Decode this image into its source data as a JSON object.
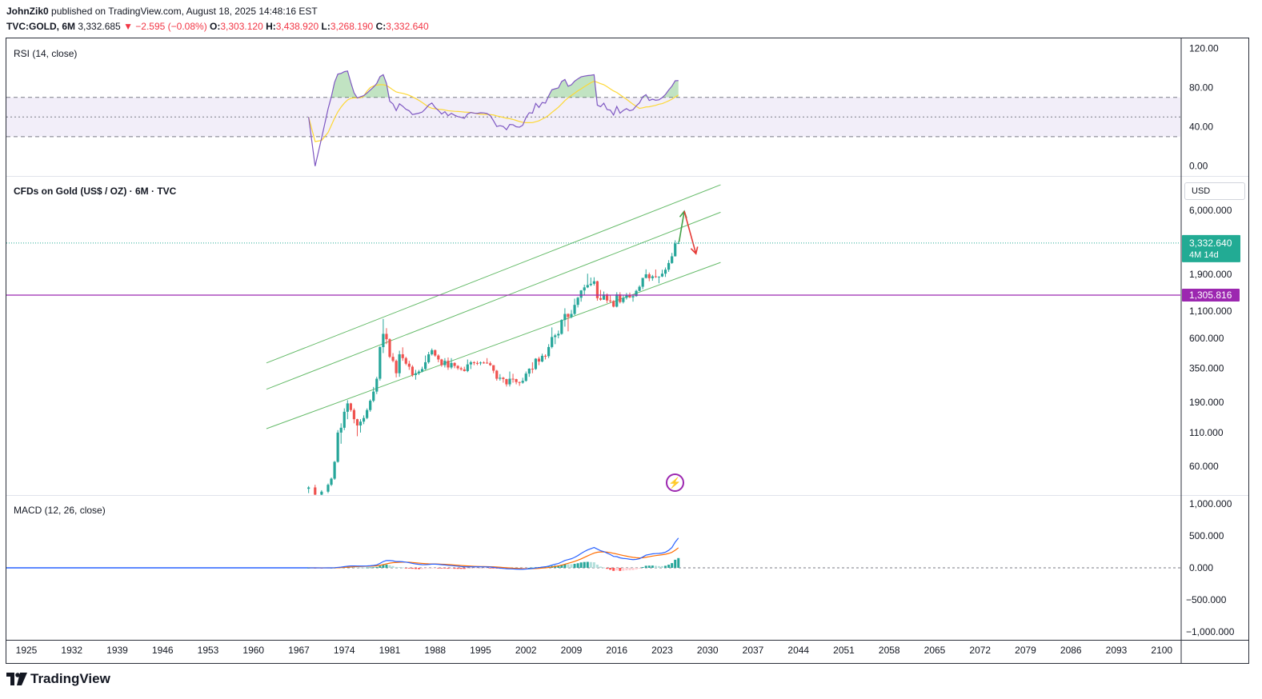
{
  "header": {
    "author": "JohnZik0",
    "published_text": "published on TradingView.com, August 18, 2025 14:48:16 EST",
    "symbol": "TVC:GOLD, 6M",
    "last": "3,332.685",
    "change": "▼ −2.595 (−0.08%)",
    "o_label": "O:",
    "o_value": "3,303.120",
    "h_label": "H:",
    "h_value": "3,438.920",
    "l_label": "L:",
    "l_value": "3,268.190",
    "c_label": "C:",
    "c_value": "3,332.640"
  },
  "rsi_pane": {
    "label": "RSI (14, close)",
    "ticks": [
      "120.00",
      "80.00",
      "40.00",
      "0.00"
    ]
  },
  "price_pane": {
    "label": "CFDs on Gold (US$ / OZ) · 6M · TVC",
    "currency": "USD",
    "ticks": [
      "6,000.000",
      "1,900.000",
      "1,100.000",
      "600.000",
      "350.000",
      "190.000",
      "110.000",
      "60.000"
    ],
    "last_price_tag": "3,332.640",
    "countdown_tag": "4M 14d",
    "hline_tag": "1,305.816"
  },
  "macd_pane": {
    "label": "MACD (12, 26, close)",
    "ticks": [
      "1,000.000",
      "500.000",
      "0.000",
      "−500.000",
      "−1,000.000"
    ]
  },
  "time_axis": [
    "1925",
    "1932",
    "1939",
    "1946",
    "1953",
    "1960",
    "1967",
    "1974",
    "1981",
    "1988",
    "1995",
    "2002",
    "2009",
    "2016",
    "2023",
    "2030",
    "2037",
    "2044",
    "2051",
    "2058",
    "2065",
    "2072",
    "2079",
    "2086",
    "2093",
    "2100"
  ],
  "footer": {
    "brand": "TradingView"
  },
  "colors": {
    "up": "#26a69a",
    "down": "#ef5350",
    "rsi_line": "#7e57c2",
    "rsi_ma": "#fdd835",
    "channel": "#66bb6a",
    "hline": "#9c27b0",
    "macd": "#2962ff",
    "signal": "#ff6d00",
    "last_price": "#22ab94"
  },
  "chart_data": {
    "type": "candlestick",
    "interval": "6M",
    "scale": "log",
    "ohlc": [
      {
        "t": 1968.5,
        "o": 40,
        "h": 42,
        "l": 37,
        "c": 41
      },
      {
        "t": 1969.5,
        "o": 41,
        "h": 43,
        "l": 35,
        "c": 36
      },
      {
        "t": 1970.5,
        "o": 36,
        "h": 39,
        "l": 35,
        "c": 38
      },
      {
        "t": 1971.5,
        "o": 38,
        "h": 44,
        "l": 37,
        "c": 43
      },
      {
        "t": 1972.0,
        "o": 43,
        "h": 49,
        "l": 42,
        "c": 48
      },
      {
        "t": 1972.5,
        "o": 48,
        "h": 66,
        "l": 47,
        "c": 65
      },
      {
        "t": 1973.0,
        "o": 65,
        "h": 115,
        "l": 64,
        "c": 110
      },
      {
        "t": 1973.5,
        "o": 110,
        "h": 130,
        "l": 90,
        "c": 120
      },
      {
        "t": 1974.0,
        "o": 120,
        "h": 170,
        "l": 115,
        "c": 160
      },
      {
        "t": 1974.5,
        "o": 160,
        "h": 197,
        "l": 140,
        "c": 186
      },
      {
        "t": 1975.0,
        "o": 186,
        "h": 188,
        "l": 160,
        "c": 165
      },
      {
        "t": 1975.5,
        "o": 165,
        "h": 170,
        "l": 130,
        "c": 140
      },
      {
        "t": 1976.0,
        "o": 140,
        "h": 141,
        "l": 103,
        "c": 125
      },
      {
        "t": 1976.5,
        "o": 125,
        "h": 140,
        "l": 110,
        "c": 134
      },
      {
        "t": 1977.0,
        "o": 134,
        "h": 150,
        "l": 128,
        "c": 143
      },
      {
        "t": 1977.5,
        "o": 143,
        "h": 170,
        "l": 140,
        "c": 165
      },
      {
        "t": 1978.0,
        "o": 165,
        "h": 200,
        "l": 160,
        "c": 195
      },
      {
        "t": 1978.5,
        "o": 195,
        "h": 250,
        "l": 190,
        "c": 230
      },
      {
        "t": 1979.0,
        "o": 230,
        "h": 300,
        "l": 220,
        "c": 290
      },
      {
        "t": 1979.5,
        "o": 290,
        "h": 520,
        "l": 280,
        "c": 512
      },
      {
        "t": 1980.0,
        "o": 512,
        "h": 850,
        "l": 460,
        "c": 650
      },
      {
        "t": 1980.5,
        "o": 650,
        "h": 720,
        "l": 540,
        "c": 590
      },
      {
        "t": 1981.0,
        "o": 590,
        "h": 600,
        "l": 420,
        "c": 430
      },
      {
        "t": 1981.5,
        "o": 430,
        "h": 460,
        "l": 390,
        "c": 400
      },
      {
        "t": 1982.0,
        "o": 400,
        "h": 410,
        "l": 297,
        "c": 320
      },
      {
        "t": 1982.5,
        "o": 320,
        "h": 480,
        "l": 300,
        "c": 450
      },
      {
        "t": 1983.0,
        "o": 450,
        "h": 510,
        "l": 400,
        "c": 420
      },
      {
        "t": 1983.5,
        "o": 420,
        "h": 430,
        "l": 370,
        "c": 380
      },
      {
        "t": 1984.0,
        "o": 380,
        "h": 400,
        "l": 340,
        "c": 360
      },
      {
        "t": 1984.5,
        "o": 360,
        "h": 370,
        "l": 300,
        "c": 310
      },
      {
        "t": 1985.0,
        "o": 310,
        "h": 340,
        "l": 285,
        "c": 320
      },
      {
        "t": 1985.5,
        "o": 320,
        "h": 340,
        "l": 310,
        "c": 330
      },
      {
        "t": 1986.0,
        "o": 330,
        "h": 360,
        "l": 325,
        "c": 345
      },
      {
        "t": 1986.5,
        "o": 345,
        "h": 440,
        "l": 340,
        "c": 390
      },
      {
        "t": 1987.0,
        "o": 390,
        "h": 470,
        "l": 380,
        "c": 450
      },
      {
        "t": 1987.5,
        "o": 450,
        "h": 500,
        "l": 440,
        "c": 485
      },
      {
        "t": 1988.0,
        "o": 485,
        "h": 490,
        "l": 430,
        "c": 440
      },
      {
        "t": 1988.5,
        "o": 440,
        "h": 450,
        "l": 390,
        "c": 410
      },
      {
        "t": 1989.0,
        "o": 410,
        "h": 415,
        "l": 360,
        "c": 370
      },
      {
        "t": 1989.5,
        "o": 370,
        "h": 420,
        "l": 355,
        "c": 400
      },
      {
        "t": 1990.0,
        "o": 400,
        "h": 425,
        "l": 340,
        "c": 355
      },
      {
        "t": 1990.5,
        "o": 355,
        "h": 420,
        "l": 345,
        "c": 385
      },
      {
        "t": 1991.0,
        "o": 385,
        "h": 390,
        "l": 350,
        "c": 365
      },
      {
        "t": 1991.5,
        "o": 365,
        "h": 370,
        "l": 340,
        "c": 350
      },
      {
        "t": 1992.0,
        "o": 350,
        "h": 360,
        "l": 335,
        "c": 343
      },
      {
        "t": 1992.5,
        "o": 343,
        "h": 360,
        "l": 330,
        "c": 333
      },
      {
        "t": 1993.0,
        "o": 333,
        "h": 410,
        "l": 326,
        "c": 375
      },
      {
        "t": 1993.5,
        "o": 375,
        "h": 400,
        "l": 345,
        "c": 390
      },
      {
        "t": 1994.0,
        "o": 390,
        "h": 397,
        "l": 370,
        "c": 385
      },
      {
        "t": 1994.5,
        "o": 385,
        "h": 398,
        "l": 370,
        "c": 383
      },
      {
        "t": 1995.0,
        "o": 383,
        "h": 395,
        "l": 370,
        "c": 388
      },
      {
        "t": 1995.5,
        "o": 388,
        "h": 396,
        "l": 380,
        "c": 387
      },
      {
        "t": 1996.0,
        "o": 387,
        "h": 420,
        "l": 380,
        "c": 383
      },
      {
        "t": 1996.5,
        "o": 383,
        "h": 395,
        "l": 365,
        "c": 370
      },
      {
        "t": 1997.0,
        "o": 370,
        "h": 370,
        "l": 320,
        "c": 335
      },
      {
        "t": 1997.5,
        "o": 335,
        "h": 340,
        "l": 280,
        "c": 290
      },
      {
        "t": 1998.0,
        "o": 290,
        "h": 315,
        "l": 280,
        "c": 295
      },
      {
        "t": 1998.5,
        "o": 295,
        "h": 300,
        "l": 270,
        "c": 288
      },
      {
        "t": 1999.0,
        "o": 288,
        "h": 290,
        "l": 252,
        "c": 262
      },
      {
        "t": 1999.5,
        "o": 262,
        "h": 330,
        "l": 252,
        "c": 290
      },
      {
        "t": 2000.0,
        "o": 290,
        "h": 317,
        "l": 270,
        "c": 288
      },
      {
        "t": 2000.5,
        "o": 288,
        "h": 290,
        "l": 262,
        "c": 273
      },
      {
        "t": 2001.0,
        "o": 273,
        "h": 275,
        "l": 255,
        "c": 270
      },
      {
        "t": 2001.5,
        "o": 270,
        "h": 295,
        "l": 265,
        "c": 279
      },
      {
        "t": 2002.0,
        "o": 279,
        "h": 330,
        "l": 275,
        "c": 318
      },
      {
        "t": 2002.5,
        "o": 318,
        "h": 350,
        "l": 300,
        "c": 347
      },
      {
        "t": 2003.0,
        "o": 347,
        "h": 390,
        "l": 320,
        "c": 345
      },
      {
        "t": 2003.5,
        "o": 345,
        "h": 420,
        "l": 340,
        "c": 416
      },
      {
        "t": 2004.0,
        "o": 416,
        "h": 430,
        "l": 370,
        "c": 395
      },
      {
        "t": 2004.5,
        "o": 395,
        "h": 455,
        "l": 390,
        "c": 438
      },
      {
        "t": 2005.0,
        "o": 438,
        "h": 450,
        "l": 410,
        "c": 435
      },
      {
        "t": 2005.5,
        "o": 435,
        "h": 540,
        "l": 420,
        "c": 513
      },
      {
        "t": 2006.0,
        "o": 513,
        "h": 730,
        "l": 500,
        "c": 614
      },
      {
        "t": 2006.5,
        "o": 614,
        "h": 650,
        "l": 540,
        "c": 632
      },
      {
        "t": 2007.0,
        "o": 632,
        "h": 690,
        "l": 600,
        "c": 650
      },
      {
        "t": 2007.5,
        "o": 650,
        "h": 845,
        "l": 640,
        "c": 834
      },
      {
        "t": 2008.0,
        "o": 834,
        "h": 1030,
        "l": 740,
        "c": 930
      },
      {
        "t": 2008.5,
        "o": 930,
        "h": 940,
        "l": 680,
        "c": 880
      },
      {
        "t": 2009.0,
        "o": 880,
        "h": 1000,
        "l": 860,
        "c": 930
      },
      {
        "t": 2009.5,
        "o": 930,
        "h": 1225,
        "l": 910,
        "c": 1095
      },
      {
        "t": 2010.0,
        "o": 1095,
        "h": 1265,
        "l": 1045,
        "c": 1245
      },
      {
        "t": 2010.5,
        "o": 1245,
        "h": 1430,
        "l": 1160,
        "c": 1420
      },
      {
        "t": 2011.0,
        "o": 1420,
        "h": 1575,
        "l": 1310,
        "c": 1500
      },
      {
        "t": 2011.5,
        "o": 1500,
        "h": 1920,
        "l": 1480,
        "c": 1565
      },
      {
        "t": 2012.0,
        "o": 1565,
        "h": 1790,
        "l": 1530,
        "c": 1600
      },
      {
        "t": 2012.5,
        "o": 1600,
        "h": 1800,
        "l": 1550,
        "c": 1675
      },
      {
        "t": 2013.0,
        "o": 1675,
        "h": 1690,
        "l": 1180,
        "c": 1235
      },
      {
        "t": 2013.5,
        "o": 1235,
        "h": 1433,
        "l": 1180,
        "c": 1202
      },
      {
        "t": 2014.0,
        "o": 1202,
        "h": 1392,
        "l": 1200,
        "c": 1320
      },
      {
        "t": 2014.5,
        "o": 1320,
        "h": 1345,
        "l": 1130,
        "c": 1185
      },
      {
        "t": 2015.0,
        "o": 1185,
        "h": 1307,
        "l": 1140,
        "c": 1172
      },
      {
        "t": 2015.5,
        "o": 1172,
        "h": 1190,
        "l": 1046,
        "c": 1061
      },
      {
        "t": 2016.0,
        "o": 1061,
        "h": 1375,
        "l": 1046,
        "c": 1322
      },
      {
        "t": 2016.5,
        "o": 1322,
        "h": 1375,
        "l": 1123,
        "c": 1152
      },
      {
        "t": 2017.0,
        "o": 1152,
        "h": 1296,
        "l": 1123,
        "c": 1242
      },
      {
        "t": 2017.5,
        "o": 1242,
        "h": 1357,
        "l": 1204,
        "c": 1303
      },
      {
        "t": 2018.0,
        "o": 1303,
        "h": 1366,
        "l": 1237,
        "c": 1253
      },
      {
        "t": 2018.5,
        "o": 1253,
        "h": 1300,
        "l": 1160,
        "c": 1282
      },
      {
        "t": 2019.0,
        "o": 1282,
        "h": 1439,
        "l": 1266,
        "c": 1409
      },
      {
        "t": 2019.5,
        "o": 1409,
        "h": 1557,
        "l": 1400,
        "c": 1517
      },
      {
        "t": 2020.0,
        "o": 1517,
        "h": 1765,
        "l": 1451,
        "c": 1780
      },
      {
        "t": 2020.5,
        "o": 1780,
        "h": 2075,
        "l": 1760,
        "c": 1898
      },
      {
        "t": 2021.0,
        "o": 1898,
        "h": 1959,
        "l": 1676,
        "c": 1770
      },
      {
        "t": 2021.5,
        "o": 1770,
        "h": 1877,
        "l": 1690,
        "c": 1829
      },
      {
        "t": 2022.0,
        "o": 1829,
        "h": 2070,
        "l": 1780,
        "c": 1807
      },
      {
        "t": 2022.5,
        "o": 1807,
        "h": 1814,
        "l": 1615,
        "c": 1824
      },
      {
        "t": 2023.0,
        "o": 1824,
        "h": 2062,
        "l": 1804,
        "c": 1919
      },
      {
        "t": 2023.5,
        "o": 1919,
        "h": 2146,
        "l": 1810,
        "c": 2063
      },
      {
        "t": 2024.0,
        "o": 2063,
        "h": 2450,
        "l": 1984,
        "c": 2326
      },
      {
        "t": 2024.5,
        "o": 2326,
        "h": 2790,
        "l": 2290,
        "c": 2624
      },
      {
        "t": 2025.0,
        "o": 2624,
        "h": 3500,
        "l": 2614,
        "c": 3303
      },
      {
        "t": 2025.5,
        "o": 3303.12,
        "h": 3438.92,
        "l": 3268.19,
        "c": 3332.64
      }
    ],
    "horizontal_line": 1305.816,
    "channel_lines": [
      {
        "from": {
          "t": 1962,
          "p": 385
        },
        "to": {
          "t": 2032,
          "p": 9500
        }
      },
      {
        "from": {
          "t": 1962,
          "p": 240
        },
        "to": {
          "t": 2032,
          "p": 5800
        }
      },
      {
        "from": {
          "t": 1962,
          "p": 118
        },
        "to": {
          "t": 2032,
          "p": 2350
        }
      }
    ],
    "arrows": [
      {
        "color": "up",
        "from": {
          "t": 2025.6,
          "p": 3400
        },
        "to": {
          "t": 2026.4,
          "p": 5900
        }
      },
      {
        "color": "down",
        "from": {
          "t": 2026.4,
          "p": 5900
        },
        "to": {
          "t": 2028.2,
          "p": 2750
        }
      }
    ],
    "rsi": {
      "levels": [
        70,
        50,
        30
      ],
      "ylim": [
        -10,
        130
      ]
    },
    "macd": {
      "ylim": [
        -1050,
        1050
      ]
    },
    "xlim": [
      1922,
      2104
    ]
  }
}
